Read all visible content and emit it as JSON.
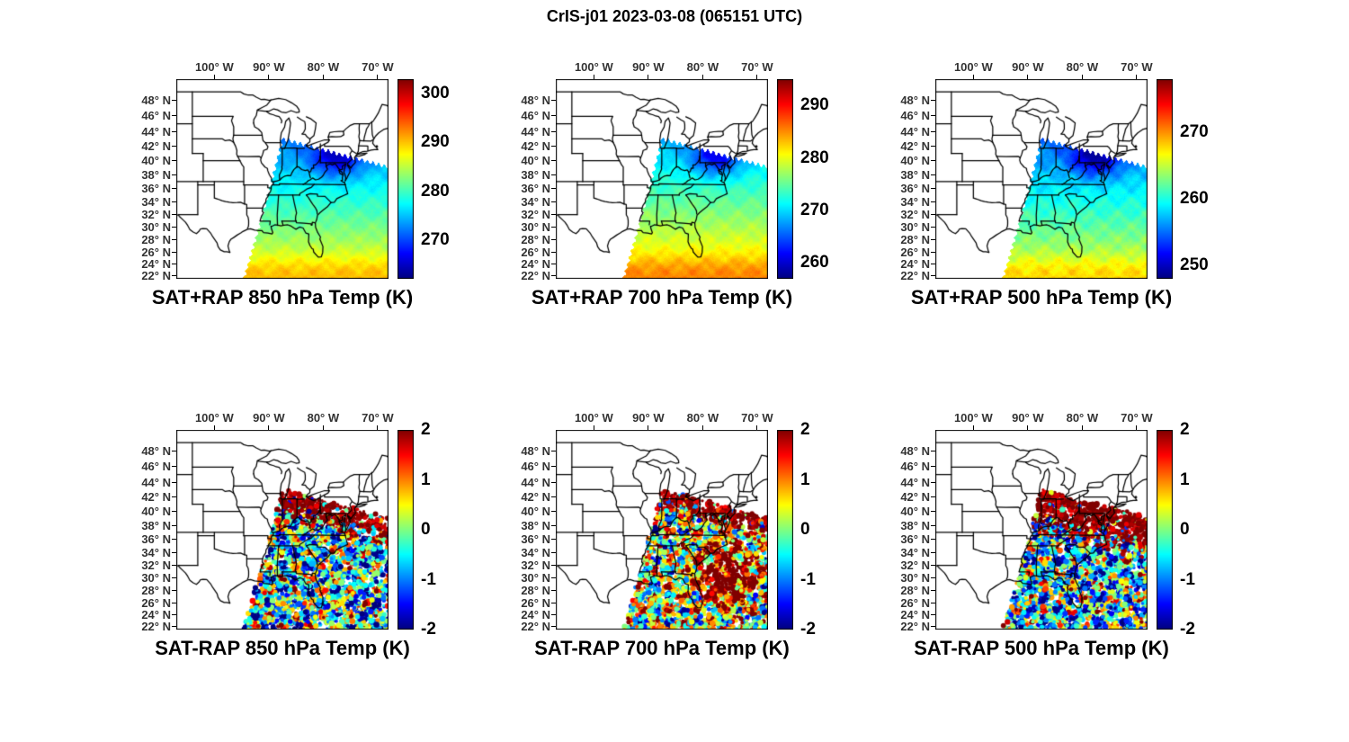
{
  "figure": {
    "title": "CrIS-j01 2023-03-08 (065151 UTC)"
  },
  "chart_data": {
    "type": "heatmap",
    "title": "CrIS-j01 2023-03-08 (065151 UTC)",
    "layout": {
      "rows": 2,
      "cols": 3,
      "grid": false,
      "colormap": "jet"
    },
    "map_extent": {
      "lon_min": -107,
      "lon_max": -68,
      "lat_min": 21.5,
      "lat_max": 50.5
    },
    "lon_ticks": [
      {
        "value": -100,
        "label": "100° W"
      },
      {
        "value": -90,
        "label": "90° W"
      },
      {
        "value": -80,
        "label": "80° W"
      },
      {
        "value": -70,
        "label": "70° W"
      }
    ],
    "lat_ticks": [
      {
        "value": 48,
        "label": "48° N"
      },
      {
        "value": 46,
        "label": "46° N"
      },
      {
        "value": 44,
        "label": "44° N"
      },
      {
        "value": 42,
        "label": "42° N"
      },
      {
        "value": 40,
        "label": "40° N"
      },
      {
        "value": 38,
        "label": "38° N"
      },
      {
        "value": 36,
        "label": "36° N"
      },
      {
        "value": 34,
        "label": "34° N"
      },
      {
        "value": 32,
        "label": "32° N"
      },
      {
        "value": 30,
        "label": "30° N"
      },
      {
        "value": 28,
        "label": "28° N"
      },
      {
        "value": 26,
        "label": "26° N"
      },
      {
        "value": 24,
        "label": "24° N"
      },
      {
        "value": 22,
        "label": "22° N"
      }
    ],
    "swath": {
      "top_lat_west": 43,
      "top_slope_per_deg_lon": 0.2,
      "west_lon_at_top": -87.5,
      "west_slope_per_deg_lat": 0.33
    },
    "panels": [
      {
        "id": "sat-plus-rap-850",
        "row": 0,
        "col": 0,
        "mode": "analysis",
        "title": "SAT+RAP 850 hPa Temp (K)",
        "colorbar": {
          "min": 262,
          "max": 303,
          "tick_labels": [
            "300",
            "290",
            "280",
            "270"
          ],
          "tick_values": [
            300,
            290,
            280,
            270
          ]
        },
        "field": {
          "south_value": 288.5,
          "lapse": 0.78,
          "blob_amp": 9.5,
          "blob_lon": -77.5,
          "blob_lat": 40.5,
          "warm_south": 2.0
        }
      },
      {
        "id": "sat-plus-rap-700",
        "row": 0,
        "col": 1,
        "mode": "analysis",
        "title": "SAT+RAP 700 hPa Temp (K)",
        "colorbar": {
          "min": 257,
          "max": 295,
          "tick_labels": [
            "290",
            "280",
            "270",
            "260"
          ],
          "tick_values": [
            290,
            280,
            270,
            260
          ]
        },
        "field": {
          "south_value": 283.5,
          "lapse": 0.72,
          "blob_amp": 9.0,
          "blob_lon": -77.5,
          "blob_lat": 40.5,
          "warm_south": 2.0
        }
      },
      {
        "id": "sat-plus-rap-500",
        "row": 0,
        "col": 2,
        "mode": "analysis",
        "title": "SAT+RAP 500 hPa Temp (K)",
        "colorbar": {
          "min": 248,
          "max": 278,
          "tick_labels": [
            "270",
            "260",
            "250"
          ],
          "tick_values": [
            270,
            260,
            250
          ]
        },
        "field": {
          "south_value": 266.5,
          "lapse": 0.55,
          "blob_amp": 7.5,
          "blob_lon": -77.5,
          "blob_lat": 40.5,
          "warm_south": 1.5
        }
      },
      {
        "id": "sat-minus-rap-850",
        "row": 1,
        "col": 0,
        "mode": "difference",
        "title": "SAT-RAP 850 hPa Temp (K)",
        "colorbar": {
          "min": -2,
          "max": 2,
          "tick_labels": [
            "2",
            "1",
            "0",
            "-1",
            "-2"
          ],
          "tick_values": [
            2,
            1,
            0,
            -1,
            -2
          ]
        },
        "diff": {
          "seed": 11,
          "strip_depth": 3.2,
          "bias": -0.35,
          "phase1": 1.1,
          "phase2": 2.3,
          "warm_blob_amp": 0
        }
      },
      {
        "id": "sat-minus-rap-700",
        "row": 1,
        "col": 1,
        "mode": "difference",
        "title": "SAT-RAP 700 hPa Temp (K)",
        "colorbar": {
          "min": -2,
          "max": 2,
          "tick_labels": [
            "2",
            "1",
            "0",
            "-1",
            "-2"
          ],
          "tick_values": [
            2,
            1,
            0,
            -1,
            -2
          ]
        },
        "diff": {
          "seed": 22,
          "strip_depth": 2.2,
          "bias": 0.1,
          "phase1": 2.4,
          "phase2": 0.7,
          "warm_blob_amp": 1.3
        }
      },
      {
        "id": "sat-minus-rap-500",
        "row": 1,
        "col": 2,
        "mode": "difference",
        "title": "SAT-RAP 500 hPa Temp (K)",
        "colorbar": {
          "min": -2,
          "max": 2,
          "tick_labels": [
            "2",
            "1",
            "0",
            "-1",
            "-2"
          ],
          "tick_values": [
            2,
            1,
            0,
            -1,
            -2
          ]
        },
        "diff": {
          "seed": 33,
          "strip_depth": 5.0,
          "bias": -0.45,
          "phase1": 0.3,
          "phase2": 4.1,
          "warm_blob_amp": 0
        }
      }
    ],
    "colors": {
      "background": "#ffffff",
      "outline": "#000000",
      "tick_label": "#333333"
    }
  }
}
